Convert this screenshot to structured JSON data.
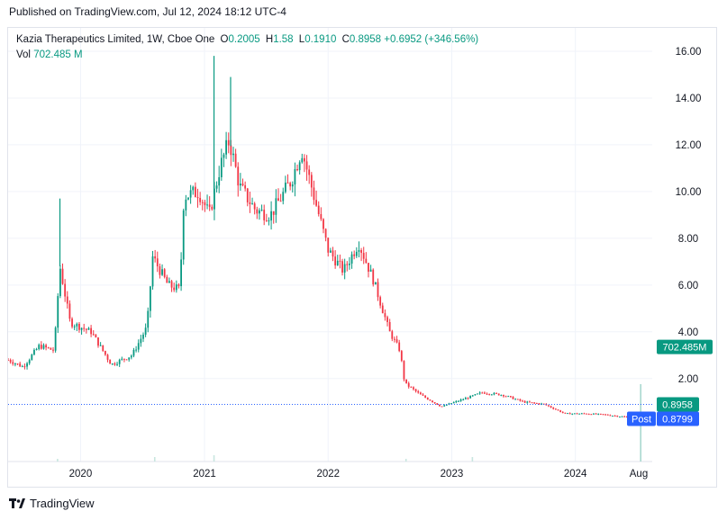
{
  "header": {
    "published": "Published on TradingView.com, Jul 12, 2024 18:12 UTC-4"
  },
  "legend": {
    "symbol": "Kazia Therapeutics Limited, 1W, Cboe One",
    "open_label": "O",
    "open": "0.2005",
    "high_label": "H",
    "high": "1.58",
    "low_label": "L",
    "low": "0.1910",
    "close_label": "C",
    "close": "0.8958",
    "change": "+0.6952 (+346.56%)",
    "vol_label": "Vol",
    "vol": "702.485 M"
  },
  "footer": {
    "brand": "TradingView",
    "logo_icon": "tradingview-logo-icon"
  },
  "colors": {
    "up": "#089981",
    "down": "#f23645",
    "post_tag": "#2962ff",
    "grid": "#f0f3fa",
    "axis_text": "#131722"
  },
  "chart_data": {
    "type": "candlestick",
    "interval": "1W",
    "y_scale": "linear",
    "ylim": [
      -1.55,
      17.0
    ],
    "y_ticks": [
      "2.00",
      "4.00",
      "6.00",
      "8.00",
      "10.00",
      "12.00",
      "14.00",
      "16.00"
    ],
    "y_tick_values": [
      2,
      4,
      6,
      8,
      10,
      12,
      14,
      16
    ],
    "x_ticks": [
      "2020",
      "2021",
      "2022",
      "2023",
      "2024",
      "Aug"
    ],
    "x_tick_dates": [
      "2020-01-01",
      "2021-01-01",
      "2022-01-01",
      "2023-01-01",
      "2024-01-01",
      "2024-08-01"
    ],
    "x_range": [
      "2019-06-01",
      "2024-08-15"
    ],
    "last_price": 0.8958,
    "last_price_label": "0.8958",
    "post_price": 0.8799,
    "post_price_label": "0.8799",
    "post_tag": "Post",
    "volume_tag": "702.485M",
    "volume_tag_level": 3.35,
    "price_path": [
      [
        "2019-06-01",
        2.8
      ],
      [
        "2019-07-15",
        2.5
      ],
      [
        "2019-09-01",
        3.4
      ],
      [
        "2019-10-15",
        3.2
      ],
      [
        "2019-11-01",
        6.8
      ],
      [
        "2019-12-01",
        4.4
      ],
      [
        "2020-02-01",
        4.0
      ],
      [
        "2020-04-01",
        2.6
      ],
      [
        "2020-06-01",
        3.0
      ],
      [
        "2020-07-15",
        4.2
      ],
      [
        "2020-08-01",
        7.2
      ],
      [
        "2020-09-15",
        6.0
      ],
      [
        "2020-10-20",
        5.8
      ],
      [
        "2020-11-01",
        9.8
      ],
      [
        "2020-12-15",
        10.0
      ],
      [
        "2021-01-15",
        9.0
      ],
      [
        "2021-02-15",
        11.0
      ],
      [
        "2021-03-15",
        12.2
      ],
      [
        "2021-04-15",
        10.2
      ],
      [
        "2021-06-01",
        9.2
      ],
      [
        "2021-07-15",
        9.0
      ],
      [
        "2021-09-15",
        10.5
      ],
      [
        "2021-10-15",
        11.8
      ],
      [
        "2021-12-01",
        9.2
      ],
      [
        "2022-01-01",
        7.5
      ],
      [
        "2022-02-15",
        6.6
      ],
      [
        "2022-04-01",
        7.8
      ],
      [
        "2022-05-15",
        6.2
      ],
      [
        "2022-07-01",
        4.0
      ],
      [
        "2022-08-01",
        3.2
      ],
      [
        "2022-08-15",
        1.8
      ],
      [
        "2022-10-01",
        1.3
      ],
      [
        "2022-12-01",
        0.8
      ],
      [
        "2023-02-01",
        1.1
      ],
      [
        "2023-04-01",
        1.4
      ],
      [
        "2023-06-01",
        1.3
      ],
      [
        "2023-08-01",
        1.0
      ],
      [
        "2023-10-01",
        0.9
      ],
      [
        "2023-12-01",
        0.5
      ],
      [
        "2024-02-01",
        0.5
      ],
      [
        "2024-04-01",
        0.45
      ],
      [
        "2024-06-01",
        0.35
      ],
      [
        "2024-07-01",
        0.2
      ],
      [
        "2024-07-12",
        0.8958
      ]
    ],
    "spikes": [
      [
        "2019-11-01",
        9.7
      ],
      [
        "2021-01-29",
        15.8
      ],
      [
        "2021-03-19",
        14.9
      ],
      [
        "2024-07-12",
        1.58
      ]
    ]
  }
}
